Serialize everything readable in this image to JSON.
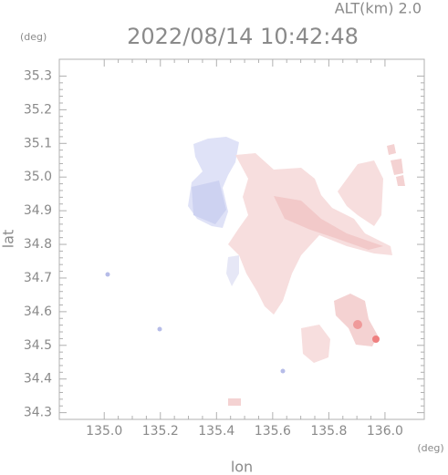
{
  "header": {
    "altitude": "ALT(km) 2.0",
    "title": "2022/08/14 10:42:48",
    "y_unit": "(deg)"
  },
  "chart_data": {
    "type": "map",
    "y_label": "lat",
    "x_label": "lon",
    "x_unit": "(deg)",
    "xlim": [
      134.84,
      136.14
    ],
    "ylim": [
      34.28,
      35.35
    ],
    "xticks": [
      {
        "value": 135,
        "label": "135.0"
      },
      135.2,
      135.4,
      135.6,
      135.8,
      {
        "value": 136,
        "label": "136.0"
      }
    ],
    "yticks": [
      34.3,
      34.4,
      34.5,
      34.6,
      34.7,
      34.8,
      34.9,
      {
        "value": 35,
        "label": "35.0"
      },
      35.1,
      35.2,
      35.3
    ]
  }
}
